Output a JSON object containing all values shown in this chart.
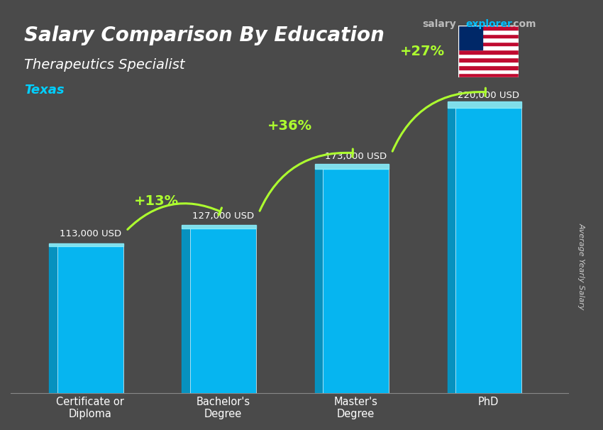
{
  "title": "Salary Comparison By Education",
  "subtitle": "Therapeutics Specialist",
  "location": "Texas",
  "ylabel": "Average Yearly Salary",
  "website": "salaryexplorer.com",
  "categories": [
    "Certificate or\nDiploma",
    "Bachelor's\nDegree",
    "Master's\nDegree",
    "PhD"
  ],
  "values": [
    113000,
    127000,
    173000,
    220000
  ],
  "value_labels": [
    "113,000 USD",
    "127,000 USD",
    "173,000 USD",
    "220,000 USD"
  ],
  "pct_labels": [
    "+13%",
    "+36%",
    "+27%"
  ],
  "bar_color": "#00BFFF",
  "bar_color_top": "#87EEFC",
  "bar_edge_left": "#0099CC",
  "title_color": "#FFFFFF",
  "subtitle_color": "#FFFFFF",
  "location_color": "#00CFFF",
  "value_label_color": "#FFFFFF",
  "pct_color": "#ADFF2F",
  "website_salary_color": "#AAAAAA",
  "website_explorer_color": "#00BFFF",
  "background_color": "#555555",
  "ylim": [
    0,
    260000
  ],
  "bar_width": 0.5
}
